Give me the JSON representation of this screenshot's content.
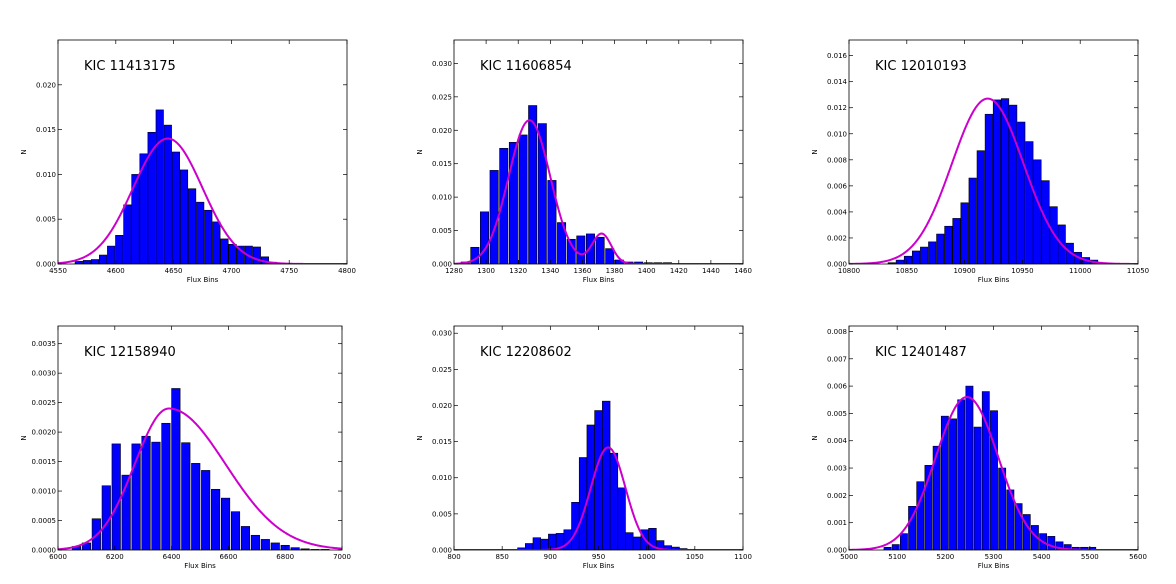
{
  "chart_data": [
    {
      "type": "bar",
      "title": "KIC 11413175",
      "xlabel": "Flux Bins",
      "ylabel": "N",
      "xlim": [
        4550,
        4800
      ],
      "ylim": [
        0,
        0.025
      ],
      "xticks": [
        4550,
        4600,
        4650,
        4700,
        4750,
        4800
      ],
      "yticks": [
        0.0,
        0.005,
        0.01,
        0.015,
        0.02
      ],
      "ytick_labels": [
        "0.000",
        "0.005",
        "0.010",
        "0.015",
        "0.020"
      ],
      "bar_width": 6.5,
      "x": [
        4568,
        4575,
        4582,
        4589,
        4596,
        4603,
        4610,
        4617,
        4624,
        4631,
        4638,
        4645,
        4652,
        4659,
        4666,
        4673,
        4680,
        4687,
        4694,
        4701,
        4708,
        4715,
        4722,
        4729,
        4736,
        4743
      ],
      "values": [
        0.0003,
        0.0004,
        0.0005,
        0.001,
        0.002,
        0.0032,
        0.0066,
        0.01,
        0.0123,
        0.0147,
        0.0172,
        0.0155,
        0.0125,
        0.0105,
        0.0084,
        0.0069,
        0.006,
        0.0047,
        0.0028,
        0.0022,
        0.002,
        0.002,
        0.0019,
        0.0008,
        0.0002,
        0.0001
      ],
      "fit": {
        "type": "gaussian",
        "amplitude": 0.014,
        "mean": 4645,
        "sigma": 30,
        "color": "#cc00cc"
      },
      "bar_color": "#0000ff"
    },
    {
      "type": "bar",
      "title": "KIC 11606854",
      "xlabel": "Flux Bins",
      "ylabel": "N",
      "xlim": [
        1280,
        1460
      ],
      "ylim": [
        0,
        0.0335
      ],
      "xticks": [
        1280,
        1300,
        1320,
        1340,
        1360,
        1380,
        1400,
        1420,
        1440,
        1460
      ],
      "yticks": [
        0.0,
        0.005,
        0.01,
        0.015,
        0.02,
        0.025,
        0.03
      ],
      "ytick_labels": [
        "0.000",
        "0.005",
        "0.010",
        "0.015",
        "0.020",
        "0.025",
        "0.030"
      ],
      "bar_width": 5.2,
      "x": [
        1287,
        1293,
        1299,
        1305,
        1311,
        1317,
        1323,
        1329,
        1335,
        1341,
        1347,
        1353,
        1359,
        1365,
        1371,
        1377,
        1383,
        1389,
        1395,
        1401,
        1407,
        1413,
        1419,
        1425
      ],
      "values": [
        0.0003,
        0.0025,
        0.0078,
        0.014,
        0.0173,
        0.0182,
        0.0193,
        0.0237,
        0.021,
        0.0125,
        0.0062,
        0.0037,
        0.0042,
        0.0045,
        0.004,
        0.0023,
        0.0006,
        0.0003,
        0.0003,
        0.0002,
        0.0002,
        0.0002,
        0.0001,
        0.0001
      ],
      "fit": {
        "type": "gaussian_pair",
        "components": [
          {
            "amplitude": 0.0215,
            "mean": 1327,
            "sigma": 13
          },
          {
            "amplitude": 0.0045,
            "mean": 1372,
            "sigma": 6
          }
        ],
        "color": "#cc00cc"
      },
      "bar_color": "#0000ff"
    },
    {
      "type": "bar",
      "title": "KIC 12010193",
      "xlabel": "Flux Bins",
      "ylabel": "N",
      "xlim": [
        10800,
        11050
      ],
      "ylim": [
        0,
        0.0172
      ],
      "xticks": [
        10800,
        10850,
        10900,
        10950,
        11000,
        11050
      ],
      "yticks": [
        0.0,
        0.002,
        0.004,
        0.006,
        0.008,
        0.01,
        0.012,
        0.014,
        0.016
      ],
      "ytick_labels": [
        "0.000",
        "0.002",
        "0.004",
        "0.006",
        "0.008",
        "0.010",
        "0.012",
        "0.014",
        "0.016"
      ],
      "bar_width": 6.5,
      "x": [
        10837,
        10844,
        10851,
        10858,
        10865,
        10872,
        10879,
        10886,
        10893,
        10900,
        10907,
        10914,
        10921,
        10928,
        10935,
        10942,
        10949,
        10956,
        10963,
        10970,
        10977,
        10984,
        10991,
        10998,
        11005,
        11012
      ],
      "values": [
        0.0001,
        0.0003,
        0.0006,
        0.001,
        0.0013,
        0.0017,
        0.0023,
        0.0029,
        0.0035,
        0.0047,
        0.0066,
        0.0087,
        0.0115,
        0.0126,
        0.0127,
        0.0122,
        0.0109,
        0.0094,
        0.008,
        0.0064,
        0.0044,
        0.003,
        0.0016,
        0.0009,
        0.0005,
        0.0003
      ],
      "fit": {
        "type": "gaussian",
        "amplitude": 0.0127,
        "mean": 10920,
        "sigma": 31,
        "color": "#cc00cc"
      },
      "bar_color": "#0000ff"
    },
    {
      "type": "bar",
      "title": "KIC 12158940",
      "xlabel": "Flux Bins",
      "ylabel": "N",
      "xlim": [
        6000,
        7000
      ],
      "ylim": [
        0,
        0.0038
      ],
      "xticks": [
        6000,
        6200,
        6400,
        6600,
        6800,
        7000
      ],
      "yticks": [
        0.0,
        0.0005,
        0.001,
        0.0015,
        0.002,
        0.0025,
        0.003,
        0.0035
      ],
      "ytick_labels": [
        "0.0000",
        "0.0005",
        "0.0010",
        "0.0015",
        "0.0020",
        "0.0025",
        "0.0030",
        "0.0035"
      ],
      "bar_width": 30,
      "x": [
        6065,
        6100,
        6135,
        6170,
        6205,
        6240,
        6275,
        6310,
        6345,
        6380,
        6415,
        6450,
        6485,
        6520,
        6555,
        6590,
        6625,
        6660,
        6695,
        6730,
        6765,
        6800,
        6835,
        6870,
        6905,
        6940
      ],
      "values": [
        6e-05,
        0.00012,
        0.00053,
        0.00109,
        0.0018,
        0.00127,
        0.0018,
        0.00193,
        0.00183,
        0.00215,
        0.00274,
        0.00182,
        0.00147,
        0.00135,
        0.00103,
        0.00088,
        0.00065,
        0.0004,
        0.00025,
        0.00018,
        0.00012,
        8e-05,
        4e-05,
        2e-05,
        1e-05,
        1e-05
      ],
      "fit": {
        "type": "skewed_gaussian",
        "amplitude": 0.0024,
        "mean": 6390,
        "sigma_left": 120,
        "sigma_right": 200,
        "color": "#cc00cc"
      },
      "bar_color": "#0000ff"
    },
    {
      "type": "bar",
      "title": "KIC 12208602",
      "xlabel": "Flux Bins",
      "ylabel": "N",
      "xlim": [
        800,
        1100
      ],
      "ylim": [
        0,
        0.031
      ],
      "xticks": [
        800,
        850,
        900,
        950,
        1000,
        1050,
        1100
      ],
      "yticks": [
        0.0,
        0.005,
        0.01,
        0.015,
        0.02,
        0.025,
        0.03
      ],
      "ytick_labels": [
        "0.000",
        "0.005",
        "0.010",
        "0.015",
        "0.020",
        "0.025",
        "0.030"
      ],
      "bar_width": 8,
      "x": [
        870,
        878,
        886,
        894,
        902,
        910,
        918,
        926,
        934,
        942,
        950,
        958,
        966,
        974,
        982,
        990,
        998,
        1006,
        1014,
        1022,
        1030,
        1038,
        1046
      ],
      "values": [
        0.0003,
        0.0009,
        0.0017,
        0.0015,
        0.0022,
        0.0023,
        0.0028,
        0.0066,
        0.0128,
        0.0173,
        0.0193,
        0.0206,
        0.0134,
        0.0086,
        0.0024,
        0.0018,
        0.0028,
        0.003,
        0.0013,
        0.0006,
        0.0004,
        0.0002,
        0.0001
      ],
      "fit": {
        "type": "gaussian",
        "amplitude": 0.0142,
        "mean": 960,
        "sigma": 18,
        "color": "#cc00cc"
      },
      "bar_color": "#0000ff"
    },
    {
      "type": "bar",
      "title": "KIC 12401487",
      "xlabel": "Flux Bins",
      "ylabel": "N",
      "xlim": [
        5000,
        5600
      ],
      "ylim": [
        0,
        0.0082
      ],
      "xticks": [
        5000,
        5100,
        5200,
        5300,
        5400,
        5500,
        5600
      ],
      "yticks": [
        0.0,
        0.001,
        0.002,
        0.003,
        0.004,
        0.005,
        0.006,
        0.007,
        0.008
      ],
      "ytick_labels": [
        "0.000",
        "0.001",
        "0.002",
        "0.003",
        "0.004",
        "0.005",
        "0.006",
        "0.007",
        "0.008"
      ],
      "bar_width": 15,
      "x": [
        5080,
        5097,
        5114,
        5131,
        5148,
        5165,
        5182,
        5199,
        5216,
        5233,
        5250,
        5267,
        5284,
        5301,
        5318,
        5335,
        5352,
        5369,
        5386,
        5403,
        5420,
        5437,
        5454,
        5471,
        5488,
        5505
      ],
      "values": [
        0.0001,
        0.0002,
        0.0006,
        0.0016,
        0.0025,
        0.0031,
        0.0038,
        0.0049,
        0.0048,
        0.0055,
        0.006,
        0.0045,
        0.0058,
        0.0051,
        0.003,
        0.0022,
        0.0017,
        0.0013,
        0.0009,
        0.0006,
        0.0005,
        0.0003,
        0.0002,
        0.0001,
        0.0001,
        0.0001
      ],
      "fit": {
        "type": "gaussian",
        "amplitude": 0.0056,
        "mean": 5245,
        "sigma": 65,
        "color": "#cc00cc"
      },
      "bar_color": "#0000ff"
    }
  ]
}
